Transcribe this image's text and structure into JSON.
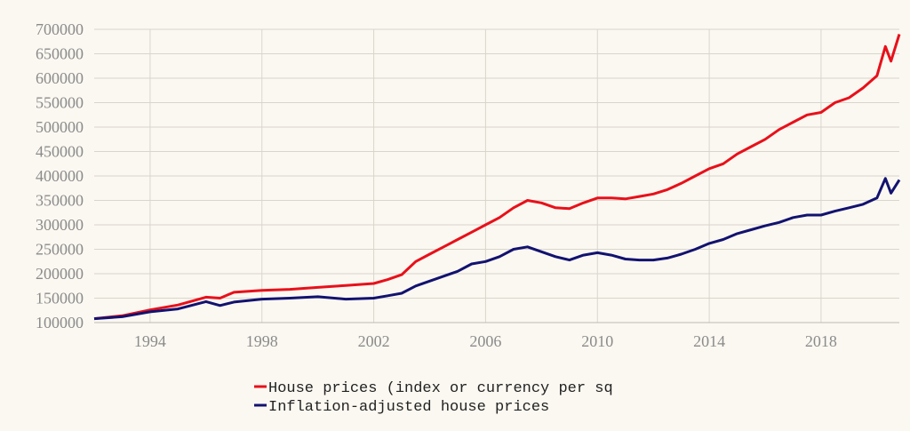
{
  "chart_data": {
    "type": "line",
    "title": "",
    "xlabel": "",
    "ylabel": "",
    "xlim": [
      1992.0,
      2020.8
    ],
    "ylim": [
      100000,
      700000
    ],
    "grid": true,
    "legend_position": "bottom-center",
    "x_ticks": [
      "1994",
      "1998",
      "2002",
      "2006",
      "2010",
      "2014",
      "2018"
    ],
    "y_ticks": [
      "100000",
      "150000",
      "200000",
      "250000",
      "300000",
      "350000",
      "400000",
      "450000",
      "500000",
      "550000",
      "600000",
      "650000",
      "700000"
    ],
    "series": [
      {
        "name": "House prices (index or currency per sq",
        "color": "#e8101a",
        "x": [
          1992.0,
          1993.0,
          1994.0,
          1995.0,
          1996.0,
          1996.5,
          1997.0,
          1998.0,
          1999.0,
          2000.0,
          2001.0,
          2002.0,
          2002.5,
          2003.0,
          2003.5,
          2004.0,
          2004.5,
          2005.0,
          2005.5,
          2006.0,
          2006.5,
          2007.0,
          2007.5,
          2008.0,
          2008.5,
          2009.0,
          2009.5,
          2010.0,
          2010.5,
          2011.0,
          2011.5,
          2012.0,
          2012.5,
          2013.0,
          2013.5,
          2014.0,
          2014.5,
          2015.0,
          2015.5,
          2016.0,
          2016.5,
          2017.0,
          2017.5,
          2018.0,
          2018.5,
          2019.0,
          2019.5,
          2020.0,
          2020.3,
          2020.5,
          2020.8
        ],
        "y": [
          108000,
          114000,
          126000,
          136000,
          152000,
          150000,
          162000,
          166000,
          168000,
          172000,
          176000,
          180000,
          188000,
          198000,
          225000,
          240000,
          255000,
          270000,
          285000,
          300000,
          315000,
          335000,
          350000,
          345000,
          335000,
          333000,
          345000,
          355000,
          355000,
          353000,
          358000,
          363000,
          372000,
          385000,
          400000,
          415000,
          425000,
          445000,
          460000,
          475000,
          495000,
          510000,
          525000,
          530000,
          550000,
          560000,
          580000,
          605000,
          665000,
          635000,
          690000
        ]
      },
      {
        "name": "Inflation-adjusted house prices",
        "color": "#121270",
        "x": [
          1992.0,
          1993.0,
          1994.0,
          1995.0,
          1996.0,
          1996.5,
          1997.0,
          1998.0,
          1999.0,
          2000.0,
          2001.0,
          2002.0,
          2002.5,
          2003.0,
          2003.5,
          2004.0,
          2004.5,
          2005.0,
          2005.5,
          2006.0,
          2006.5,
          2007.0,
          2007.5,
          2008.0,
          2008.5,
          2009.0,
          2009.5,
          2010.0,
          2010.5,
          2011.0,
          2011.5,
          2012.0,
          2012.5,
          2013.0,
          2013.5,
          2014.0,
          2014.5,
          2015.0,
          2015.5,
          2016.0,
          2016.5,
          2017.0,
          2017.5,
          2018.0,
          2018.5,
          2019.0,
          2019.5,
          2020.0,
          2020.3,
          2020.5,
          2020.8
        ],
        "y": [
          108000,
          112000,
          122000,
          128000,
          143000,
          135000,
          142000,
          148000,
          150000,
          153000,
          148000,
          150000,
          155000,
          160000,
          175000,
          185000,
          195000,
          205000,
          220000,
          225000,
          235000,
          250000,
          255000,
          245000,
          235000,
          228000,
          238000,
          243000,
          238000,
          230000,
          228000,
          228000,
          232000,
          240000,
          250000,
          262000,
          270000,
          282000,
          290000,
          298000,
          305000,
          315000,
          320000,
          320000,
          328000,
          335000,
          342000,
          355000,
          395000,
          365000,
          392000
        ]
      }
    ]
  }
}
